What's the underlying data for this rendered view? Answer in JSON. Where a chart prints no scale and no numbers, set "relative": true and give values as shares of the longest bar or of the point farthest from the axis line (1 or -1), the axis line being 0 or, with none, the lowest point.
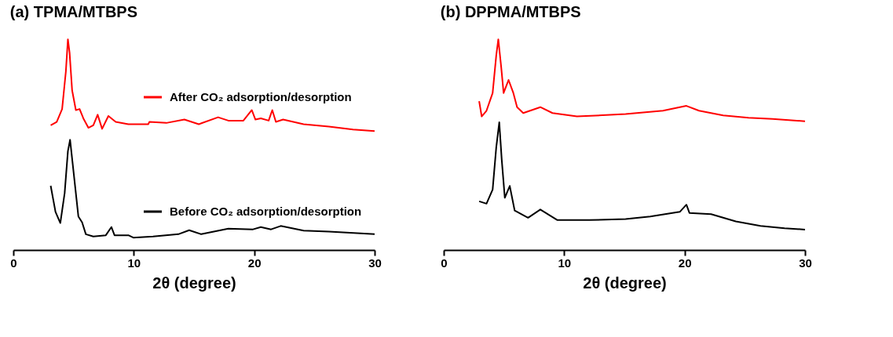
{
  "chart_data": [
    {
      "type": "line",
      "title": "(a) TPMA/MTBPS",
      "xlabel": "2θ (degree)",
      "xlim": [
        0,
        30
      ],
      "xticks": [
        0,
        10,
        20,
        30
      ],
      "relative": true,
      "grid": false,
      "legend": "right",
      "series": [
        {
          "name": "After CO₂ adsorption/desorption",
          "color": "#ff0000",
          "x": [
            3.1,
            3.6,
            4.05,
            4.36,
            4.53,
            4.67,
            4.88,
            5.19,
            5.5,
            5.81,
            6.23,
            6.64,
            7.0,
            7.37,
            7.89,
            8.5,
            9.55,
            11.2,
            11.3,
            12.7,
            14.2,
            15.4,
            17.0,
            17.85,
            19.1,
            19.8,
            20.1,
            20.55,
            21.2,
            21.5,
            21.8,
            22.4,
            24.1,
            26.2,
            28.2,
            30
          ],
          "values": [
            0.592,
            0.608,
            0.669,
            0.847,
            1,
            0.936,
            0.758,
            0.664,
            0.669,
            0.625,
            0.58,
            0.592,
            0.642,
            0.575,
            0.636,
            0.608,
            0.597,
            0.597,
            0.608,
            0.603,
            0.619,
            0.597,
            0.63,
            0.614,
            0.614,
            0.664,
            0.619,
            0.625,
            0.614,
            0.664,
            0.608,
            0.619,
            0.597,
            0.586,
            0.572,
            0.564
          ]
        },
        {
          "name": "Before CO₂ adsorption/desorption",
          "color": "#000000",
          "x": [
            3.1,
            3.5,
            3.9,
            4.26,
            4.53,
            4.71,
            4.98,
            5.4,
            5.71,
            6.02,
            6.64,
            7.68,
            8.14,
            8.4,
            9.55,
            9.96,
            11.6,
            13.7,
            14.6,
            15.6,
            17.85,
            19.9,
            20.55,
            21.4,
            22.2,
            24.1,
            26.2,
            30
          ],
          "values": [
            0.305,
            0.181,
            0.128,
            0.27,
            0.469,
            0.523,
            0.381,
            0.159,
            0.131,
            0.075,
            0.064,
            0.07,
            0.109,
            0.07,
            0.07,
            0.059,
            0.064,
            0.075,
            0.094,
            0.075,
            0.101,
            0.098,
            0.109,
            0.098,
            0.114,
            0.092,
            0.087,
            0.075
          ]
        }
      ]
    },
    {
      "type": "line",
      "title": "(b) DPPMA/MTBPS",
      "xlabel": "2θ (degree)",
      "xlim": [
        0,
        30
      ],
      "xticks": [
        0,
        10,
        20,
        30
      ],
      "relative": true,
      "grid": false,
      "series": [
        {
          "color": "#ff0000",
          "x": [
            2.94,
            3.15,
            3.55,
            4.06,
            4.36,
            4.53,
            4.77,
            4.97,
            5.38,
            5.78,
            6.09,
            6.6,
            8.02,
            9.03,
            11.06,
            15.1,
            18.2,
            20.15,
            21.2,
            23.2,
            25.3,
            27.3,
            30
          ],
          "values": [
            0.706,
            0.634,
            0.661,
            0.745,
            0.924,
            1,
            0.868,
            0.745,
            0.807,
            0.745,
            0.678,
            0.65,
            0.678,
            0.65,
            0.634,
            0.645,
            0.661,
            0.684,
            0.661,
            0.639,
            0.628,
            0.622,
            0.611
          ]
        },
        {
          "color": "#000000",
          "x": [
            2.94,
            3.55,
            4.06,
            4.36,
            4.61,
            4.81,
            5.07,
            5.48,
            5.89,
            7.0,
            8.02,
            9.44,
            12.08,
            15.1,
            17.15,
            19.6,
            20.15,
            20.4,
            22.2,
            24.25,
            26.3,
            28.3,
            30
          ],
          "values": [
            0.231,
            0.22,
            0.287,
            0.488,
            0.606,
            0.432,
            0.248,
            0.304,
            0.187,
            0.153,
            0.192,
            0.142,
            0.142,
            0.147,
            0.159,
            0.181,
            0.215,
            0.176,
            0.17,
            0.136,
            0.114,
            0.103,
            0.097
          ]
        }
      ]
    }
  ]
}
